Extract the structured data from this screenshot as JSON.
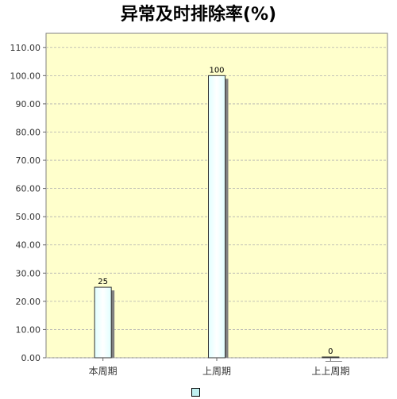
{
  "chart_data": {
    "type": "bar",
    "title": "异常及时排除率(%)",
    "categories": [
      "本周期",
      "上周期",
      "上上周期"
    ],
    "series": [
      {
        "values": [
          25,
          100,
          0
        ]
      }
    ],
    "data_labels": [
      "25",
      "100",
      "0"
    ],
    "ylim": [
      0,
      115
    ],
    "yticks": [
      0,
      10,
      20,
      30,
      40,
      50,
      60,
      70,
      80,
      90,
      100,
      110
    ],
    "ytick_labels": [
      "0.00",
      "10.00",
      "20.00",
      "30.00",
      "40.00",
      "50.00",
      "60.00",
      "70.00",
      "80.00",
      "90.00",
      "100.00",
      "110.00"
    ],
    "grid": true,
    "legend": "bottom",
    "colors": {
      "plot_background": "#ffffcc",
      "bar_fill_edge": "#e0ffff",
      "bar_fill_center": "#ffffff",
      "bar_stroke": "#333333",
      "bar_shadow": "#808080",
      "gridline": "#b0b0b0"
    }
  }
}
